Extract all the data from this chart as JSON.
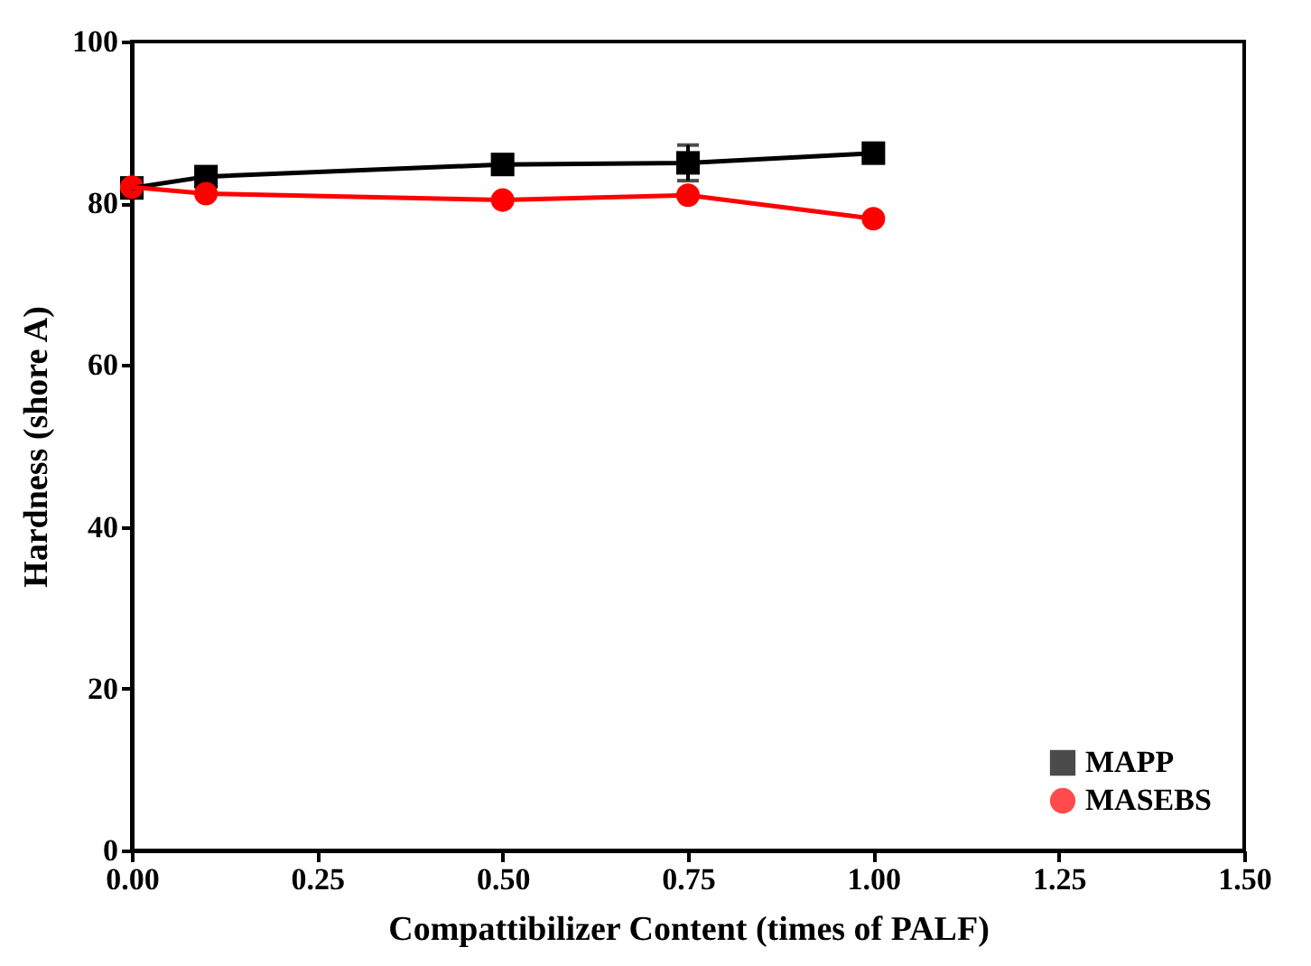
{
  "chart_data": {
    "type": "line",
    "xlabel": "Compattibilizer Content (times of PALF)",
    "ylabel": "Hardness (shore A)",
    "xlim": [
      0,
      1.5
    ],
    "xticks": [
      {
        "value": 0,
        "label": "0.00"
      },
      {
        "value": 0.25,
        "label": "0.25"
      },
      {
        "value": 0.5,
        "label": "0.50"
      },
      {
        "value": 0.75,
        "label": "0.75"
      },
      {
        "value": 1,
        "label": "1.00"
      },
      {
        "value": 1.25,
        "label": "1.25"
      },
      {
        "value": 1.5,
        "label": "1.50"
      }
    ],
    "ylim": [
      0,
      100
    ],
    "yticks": [
      0,
      20,
      40,
      60,
      80,
      100
    ],
    "legend": "bottom right",
    "grid": false,
    "x": [
      0,
      0.1,
      0.5,
      0.75,
      1.0
    ],
    "series": [
      {
        "name": "MAPP",
        "color": "#000000",
        "marker": "square",
        "values": [
          81.9,
          83.3,
          84.8,
          85.0,
          86.2
        ],
        "errors": [
          null,
          null,
          null,
          2.2,
          null
        ]
      },
      {
        "name": "MASEBS",
        "color": "#ff0000",
        "marker": "circle",
        "values": [
          82.0,
          81.2,
          80.4,
          81.0,
          78.1
        ]
      }
    ]
  }
}
